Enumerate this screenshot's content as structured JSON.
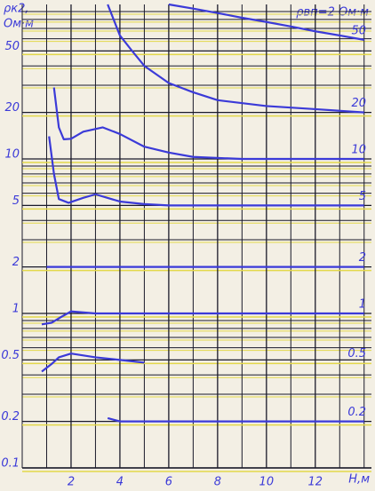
{
  "chart_data": {
    "type": "line",
    "y_label": [
      "ρк2,",
      "Ом·м"
    ],
    "annotation": "ρвп=2 Ом·м",
    "x_label": "H,м",
    "log_y": true,
    "grid": true,
    "xlim": [
      0,
      14.3
    ],
    "xticks": [
      2,
      4,
      6,
      8,
      10,
      12
    ],
    "x_minor_ticks": [
      0,
      1,
      3,
      5,
      7,
      9,
      11,
      13,
      14
    ],
    "ylim": [
      0.1,
      100
    ],
    "yticks": [
      0.1,
      0.2,
      0.5,
      1,
      2,
      5,
      10,
      20,
      50
    ],
    "y_minor_ticks": [
      0.3,
      0.4,
      0.6,
      0.7,
      0.8,
      0.9,
      3,
      4,
      6,
      7,
      8,
      9,
      30,
      40,
      60,
      70,
      80,
      90
    ],
    "grid_color": "#1a1a2a",
    "grid_minor_color": "#e3d84a",
    "series": [
      {
        "name": "50",
        "color": "#3b3ad8",
        "x": [
          6,
          7,
          8,
          9,
          10,
          11,
          12,
          13,
          14
        ],
        "values": [
          100,
          94,
          88,
          82,
          77,
          72,
          67,
          63,
          59
        ]
      },
      {
        "name": "20",
        "color": "#3b3ad8",
        "x": [
          3.5,
          4,
          4.5,
          5,
          6,
          7,
          8,
          10,
          12,
          14
        ],
        "values": [
          100,
          63,
          50,
          40,
          31,
          27,
          24,
          22,
          21,
          20
        ]
      },
      {
        "name": "10",
        "color": "#3b3ad8",
        "x": [
          1.3,
          1.5,
          1.7,
          2,
          2.5,
          3.3,
          4,
          5,
          6,
          7,
          9,
          14
        ],
        "values": [
          29,
          16,
          13.4,
          13.5,
          15,
          16,
          14.5,
          12,
          11,
          10.3,
          10,
          10
        ]
      },
      {
        "name": "5",
        "color": "#3b3ad8",
        "x": [
          1.1,
          1.3,
          1.5,
          1.9,
          2.5,
          3,
          4,
          5,
          6,
          14
        ],
        "values": [
          14,
          8,
          5.5,
          5.2,
          5.6,
          5.9,
          5.3,
          5.1,
          5,
          5
        ]
      },
      {
        "name": "2",
        "color": "#3b3ad8",
        "x": [
          1,
          14
        ],
        "values": [
          2,
          2
        ]
      },
      {
        "name": "1",
        "color": "#3b3ad8",
        "x": [
          0.8,
          1.2,
          1.6,
          2,
          3,
          14
        ],
        "values": [
          0.85,
          0.87,
          0.95,
          1.03,
          1,
          1
        ]
      },
      {
        "name": "0.5",
        "color": "#3b3ad8",
        "x": [
          0.8,
          1.2,
          1.5,
          2,
          3,
          4,
          5
        ],
        "values": [
          0.42,
          0.47,
          0.52,
          0.55,
          0.52,
          0.5,
          0.48
        ]
      },
      {
        "name": "0.2",
        "color": "#3b3ad8",
        "x": [
          3.5,
          4,
          14
        ],
        "values": [
          0.21,
          0.2,
          0.2
        ]
      }
    ]
  }
}
